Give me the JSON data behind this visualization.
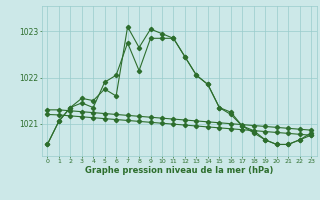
{
  "xlabel": "Graphe pression niveau de la mer (hPa)",
  "bg_color": "#cce8e8",
  "grid_color": "#99cccc",
  "line_color": "#2d6e2d",
  "hours": [
    0,
    1,
    2,
    3,
    4,
    5,
    6,
    7,
    8,
    9,
    10,
    11,
    12,
    13,
    14,
    15,
    16,
    17,
    18,
    19,
    20,
    21,
    22,
    23
  ],
  "peaked_line": [
    1020.55,
    1021.05,
    1021.35,
    1021.55,
    1021.5,
    1021.75,
    1021.6,
    1023.1,
    1022.65,
    1023.05,
    1022.95,
    1022.85,
    1022.45,
    1022.05,
    1021.85,
    1021.35,
    1021.25,
    1020.95,
    1020.85,
    1020.65,
    1020.55,
    1020.55,
    1020.65,
    1020.8
  ],
  "mid_line": [
    1020.55,
    1021.05,
    1021.35,
    1021.45,
    1021.35,
    1021.9,
    1022.05,
    1022.75,
    1022.15,
    1022.85,
    1022.85,
    1022.85,
    1022.45,
    1022.05,
    1021.85,
    1021.35,
    1021.2,
    1020.95,
    1020.8,
    1020.65,
    1020.55,
    1020.55,
    1020.65,
    1020.75
  ],
  "flat_line": [
    1021.3,
    1021.3,
    1021.28,
    1021.26,
    1021.24,
    1021.22,
    1021.2,
    1021.18,
    1021.16,
    1021.14,
    1021.12,
    1021.1,
    1021.08,
    1021.06,
    1021.04,
    1021.02,
    1021.0,
    1020.98,
    1020.96,
    1020.94,
    1020.92,
    1020.9,
    1020.88,
    1020.86
  ],
  "flat_line2": [
    1021.2,
    1021.19,
    1021.17,
    1021.15,
    1021.13,
    1021.11,
    1021.09,
    1021.07,
    1021.05,
    1021.03,
    1021.01,
    1020.99,
    1020.97,
    1020.95,
    1020.93,
    1020.91,
    1020.89,
    1020.87,
    1020.85,
    1020.83,
    1020.81,
    1020.79,
    1020.77,
    1020.75
  ],
  "ylim_min": 1020.3,
  "ylim_max": 1023.55,
  "yticks": [
    1021,
    1022,
    1023
  ],
  "figsize": [
    3.2,
    2.0
  ],
  "dpi": 100
}
